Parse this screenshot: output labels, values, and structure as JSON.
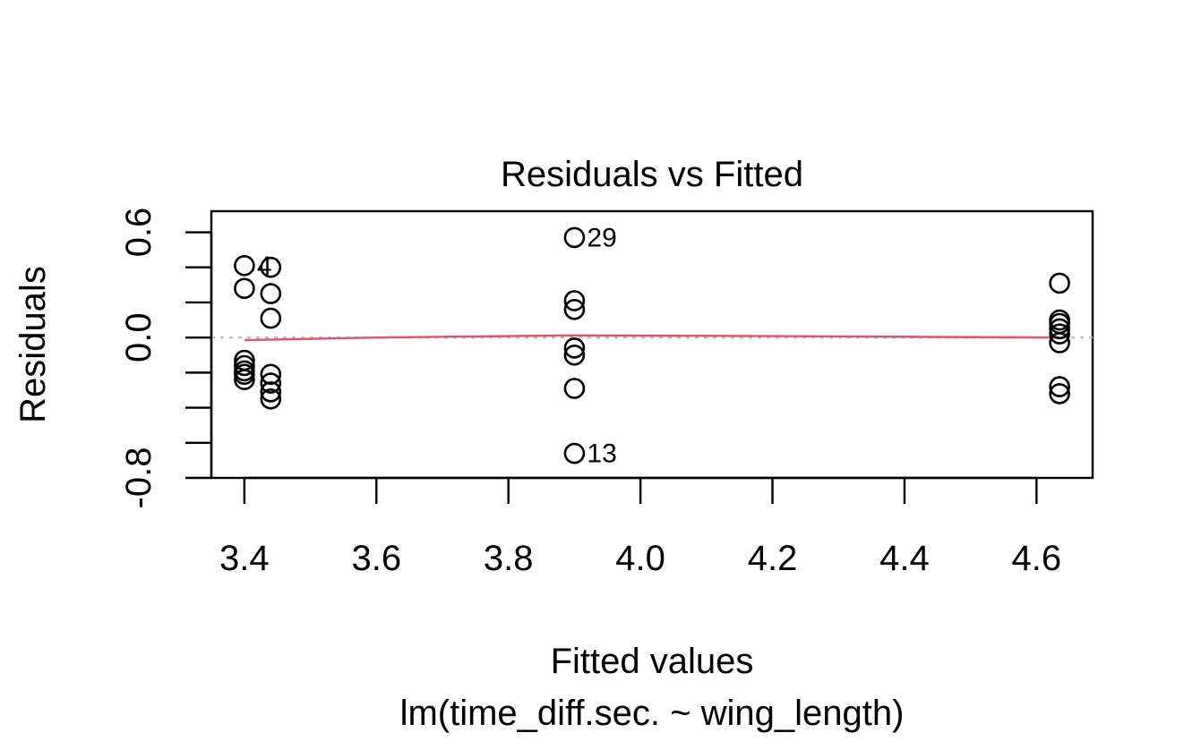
{
  "chart_data": {
    "type": "scatter",
    "title": "Residuals vs Fitted",
    "xlabel": "Fitted values",
    "subtitle": "lm(time_diff.sec. ~ wing_length)",
    "ylabel": "Residuals",
    "xlim": [
      3.35,
      4.685
    ],
    "ylim": [
      -0.8,
      0.72
    ],
    "x_ticks": [
      3.4,
      3.6,
      3.8,
      4.0,
      4.2,
      4.4,
      4.6
    ],
    "x_tick_labels": [
      "3.4",
      "3.6",
      "3.8",
      "4.0",
      "4.2",
      "4.4",
      "4.6"
    ],
    "y_ticks": [
      -0.8,
      -0.6,
      -0.4,
      -0.2,
      0.0,
      0.2,
      0.4,
      0.6
    ],
    "y_tick_labels": [
      {
        "value": -0.8,
        "label": "-0.8"
      },
      {
        "value": 0.0,
        "label": "0.0"
      },
      {
        "value": 0.6,
        "label": "0.6"
      }
    ],
    "points": [
      {
        "x": 3.4,
        "y": 0.41
      },
      {
        "x": 3.4,
        "y": 0.28
      },
      {
        "x": 3.4,
        "y": -0.13
      },
      {
        "x": 3.4,
        "y": -0.16
      },
      {
        "x": 3.4,
        "y": -0.19
      },
      {
        "x": 3.4,
        "y": -0.21
      },
      {
        "x": 3.4,
        "y": -0.24
      },
      {
        "x": 3.44,
        "y": 0.4
      },
      {
        "x": 3.44,
        "y": 0.25
      },
      {
        "x": 3.44,
        "y": 0.11
      },
      {
        "x": 3.44,
        "y": -0.21
      },
      {
        "x": 3.44,
        "y": -0.26
      },
      {
        "x": 3.44,
        "y": -0.31
      },
      {
        "x": 3.44,
        "y": -0.35
      },
      {
        "x": 3.9,
        "y": 0.57
      },
      {
        "x": 3.9,
        "y": 0.21
      },
      {
        "x": 3.9,
        "y": 0.16
      },
      {
        "x": 3.9,
        "y": -0.06
      },
      {
        "x": 3.9,
        "y": -0.1
      },
      {
        "x": 3.9,
        "y": -0.29
      },
      {
        "x": 3.9,
        "y": -0.66
      },
      {
        "x": 4.635,
        "y": 0.31
      },
      {
        "x": 4.635,
        "y": 0.1
      },
      {
        "x": 4.635,
        "y": 0.08
      },
      {
        "x": 4.635,
        "y": 0.05
      },
      {
        "x": 4.635,
        "y": 0.02
      },
      {
        "x": 4.635,
        "y": -0.03
      },
      {
        "x": 4.635,
        "y": -0.28
      },
      {
        "x": 4.635,
        "y": -0.32
      }
    ],
    "point_labels": [
      {
        "x": 3.4,
        "y": 0.41,
        "label": "4"
      },
      {
        "x": 3.9,
        "y": 0.57,
        "label": "29"
      },
      {
        "x": 3.9,
        "y": -0.66,
        "label": "13"
      }
    ],
    "smooth_line": {
      "x": [
        3.4,
        3.6,
        3.9,
        4.2,
        4.635
      ],
      "y": [
        -0.015,
        0.0,
        0.012,
        0.008,
        0.0
      ]
    },
    "reference_line_y": 0,
    "colors": {
      "smooth": "#DF536B",
      "reference": "#BEBEBE",
      "points": "#000000"
    },
    "grid": false,
    "legend": "none"
  }
}
